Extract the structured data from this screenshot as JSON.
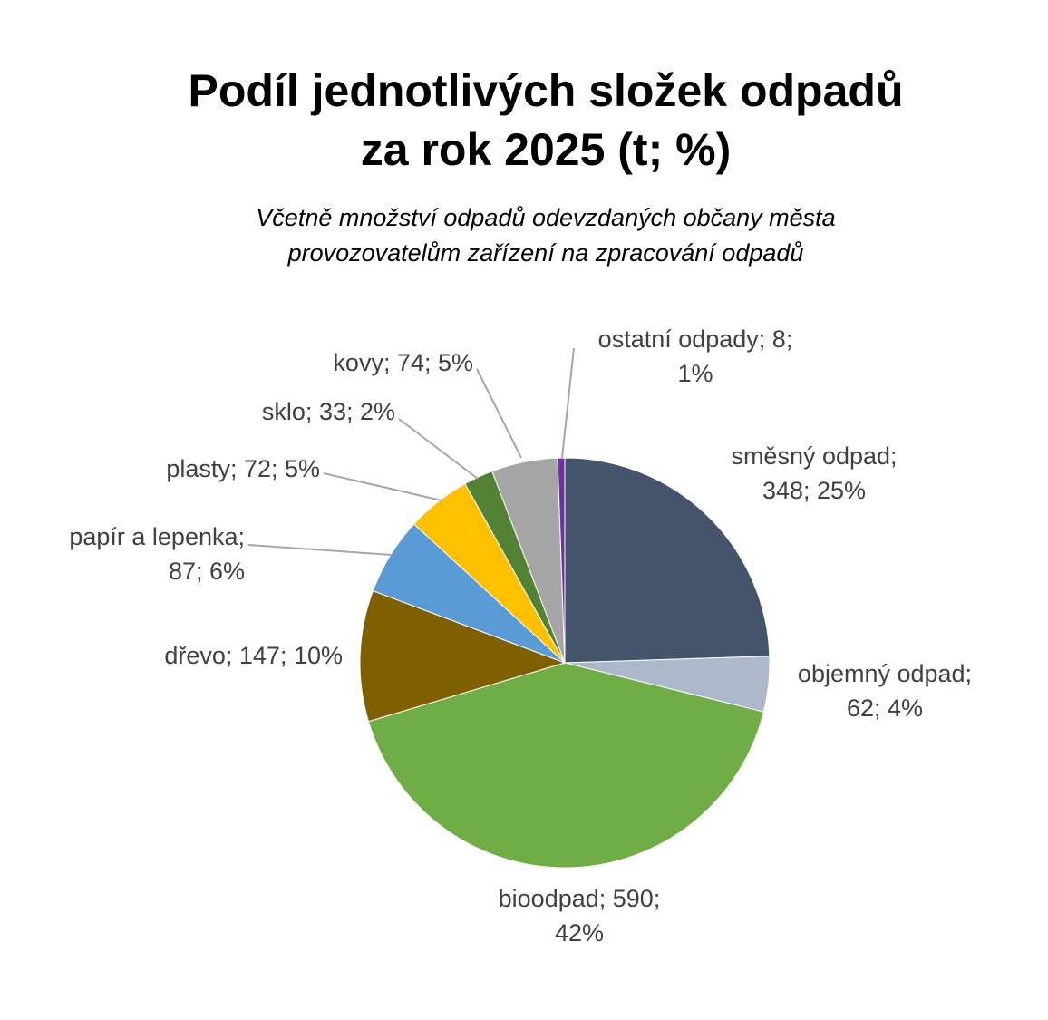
{
  "chart_data": {
    "type": "pie",
    "title": [
      "Podíl jednotlivých složek odpadů",
      "za rok 2025 (t; %)"
    ],
    "subtitle": [
      "Včetně množství odpadů odevzdaných občany města",
      "provozovatelům zařízení na zpracování odpadů"
    ],
    "legend": "none",
    "slices": [
      {
        "key": "smesny-odpad",
        "name": "směsný odpad",
        "value": 348,
        "percent": 25,
        "color": "#44546a",
        "label_lines": [
          "směsný odpad;",
          "348; 25%"
        ]
      },
      {
        "key": "objemny-odpad",
        "name": "objemný odpad",
        "value": 62,
        "percent": 4,
        "color": "#adb9ca",
        "label_lines": [
          "objemný odpad;",
          "62; 4%"
        ]
      },
      {
        "key": "bioodpad",
        "name": "bioodpad",
        "value": 590,
        "percent": 42,
        "color": "#70ad47",
        "label_lines": [
          "bioodpad; 590;",
          "42%"
        ]
      },
      {
        "key": "drevo",
        "name": "dřevo",
        "value": 147,
        "percent": 10,
        "color": "#7f6000",
        "label_lines": [
          "dřevo; 147; 10%"
        ]
      },
      {
        "key": "papir-a-lepenka",
        "name": "papír a lepenka",
        "value": 87,
        "percent": 6,
        "color": "#5b9bd5",
        "label_lines": [
          "papír a lepenka;",
          "87; 6%"
        ]
      },
      {
        "key": "plasty",
        "name": "plasty",
        "value": 72,
        "percent": 5,
        "color": "#ffc000",
        "label_lines": [
          "plasty; 72; 5%"
        ]
      },
      {
        "key": "sklo",
        "name": "sklo",
        "value": 33,
        "percent": 2,
        "color": "#548235",
        "label_lines": [
          "sklo; 33; 2%"
        ]
      },
      {
        "key": "kovy",
        "name": "kovy",
        "value": 74,
        "percent": 5,
        "color": "#a5a5a5",
        "label_lines": [
          "kovy; 74; 5%"
        ]
      },
      {
        "key": "ostatni-odpady",
        "name": "ostatní odpady",
        "value": 8,
        "percent": 1,
        "color": "#7030a0",
        "label_lines": [
          "ostatní odpady; 8;",
          "1%"
        ]
      }
    ]
  }
}
